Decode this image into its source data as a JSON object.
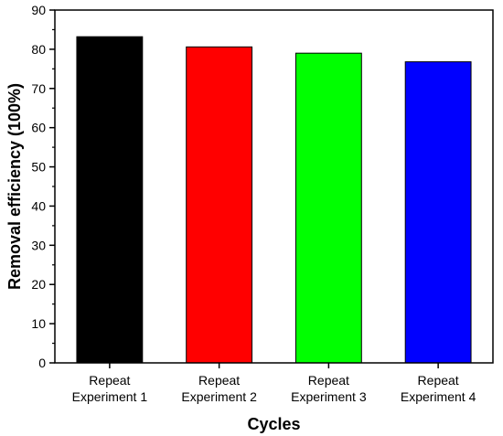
{
  "chart_data": {
    "type": "bar",
    "categories": [
      [
        "Repeat",
        "Experiment 1"
      ],
      [
        "Repeat",
        "Experiment 2"
      ],
      [
        "Repeat",
        "Experiment 3"
      ],
      [
        "Repeat",
        "Experiment 4"
      ]
    ],
    "values": [
      83.2,
      80.6,
      79.0,
      76.8
    ],
    "colors": [
      "#000000",
      "#ff0000",
      "#00ff00",
      "#0000ff"
    ],
    "title": "",
    "xlabel": "Cycles",
    "ylabel": "Removal efficiency (100%)",
    "ylim": [
      0,
      90
    ],
    "yticks": [
      "0",
      "10",
      "20",
      "30",
      "40",
      "50",
      "60",
      "70",
      "80",
      "90"
    ],
    "grid": false,
    "legend": "none"
  }
}
